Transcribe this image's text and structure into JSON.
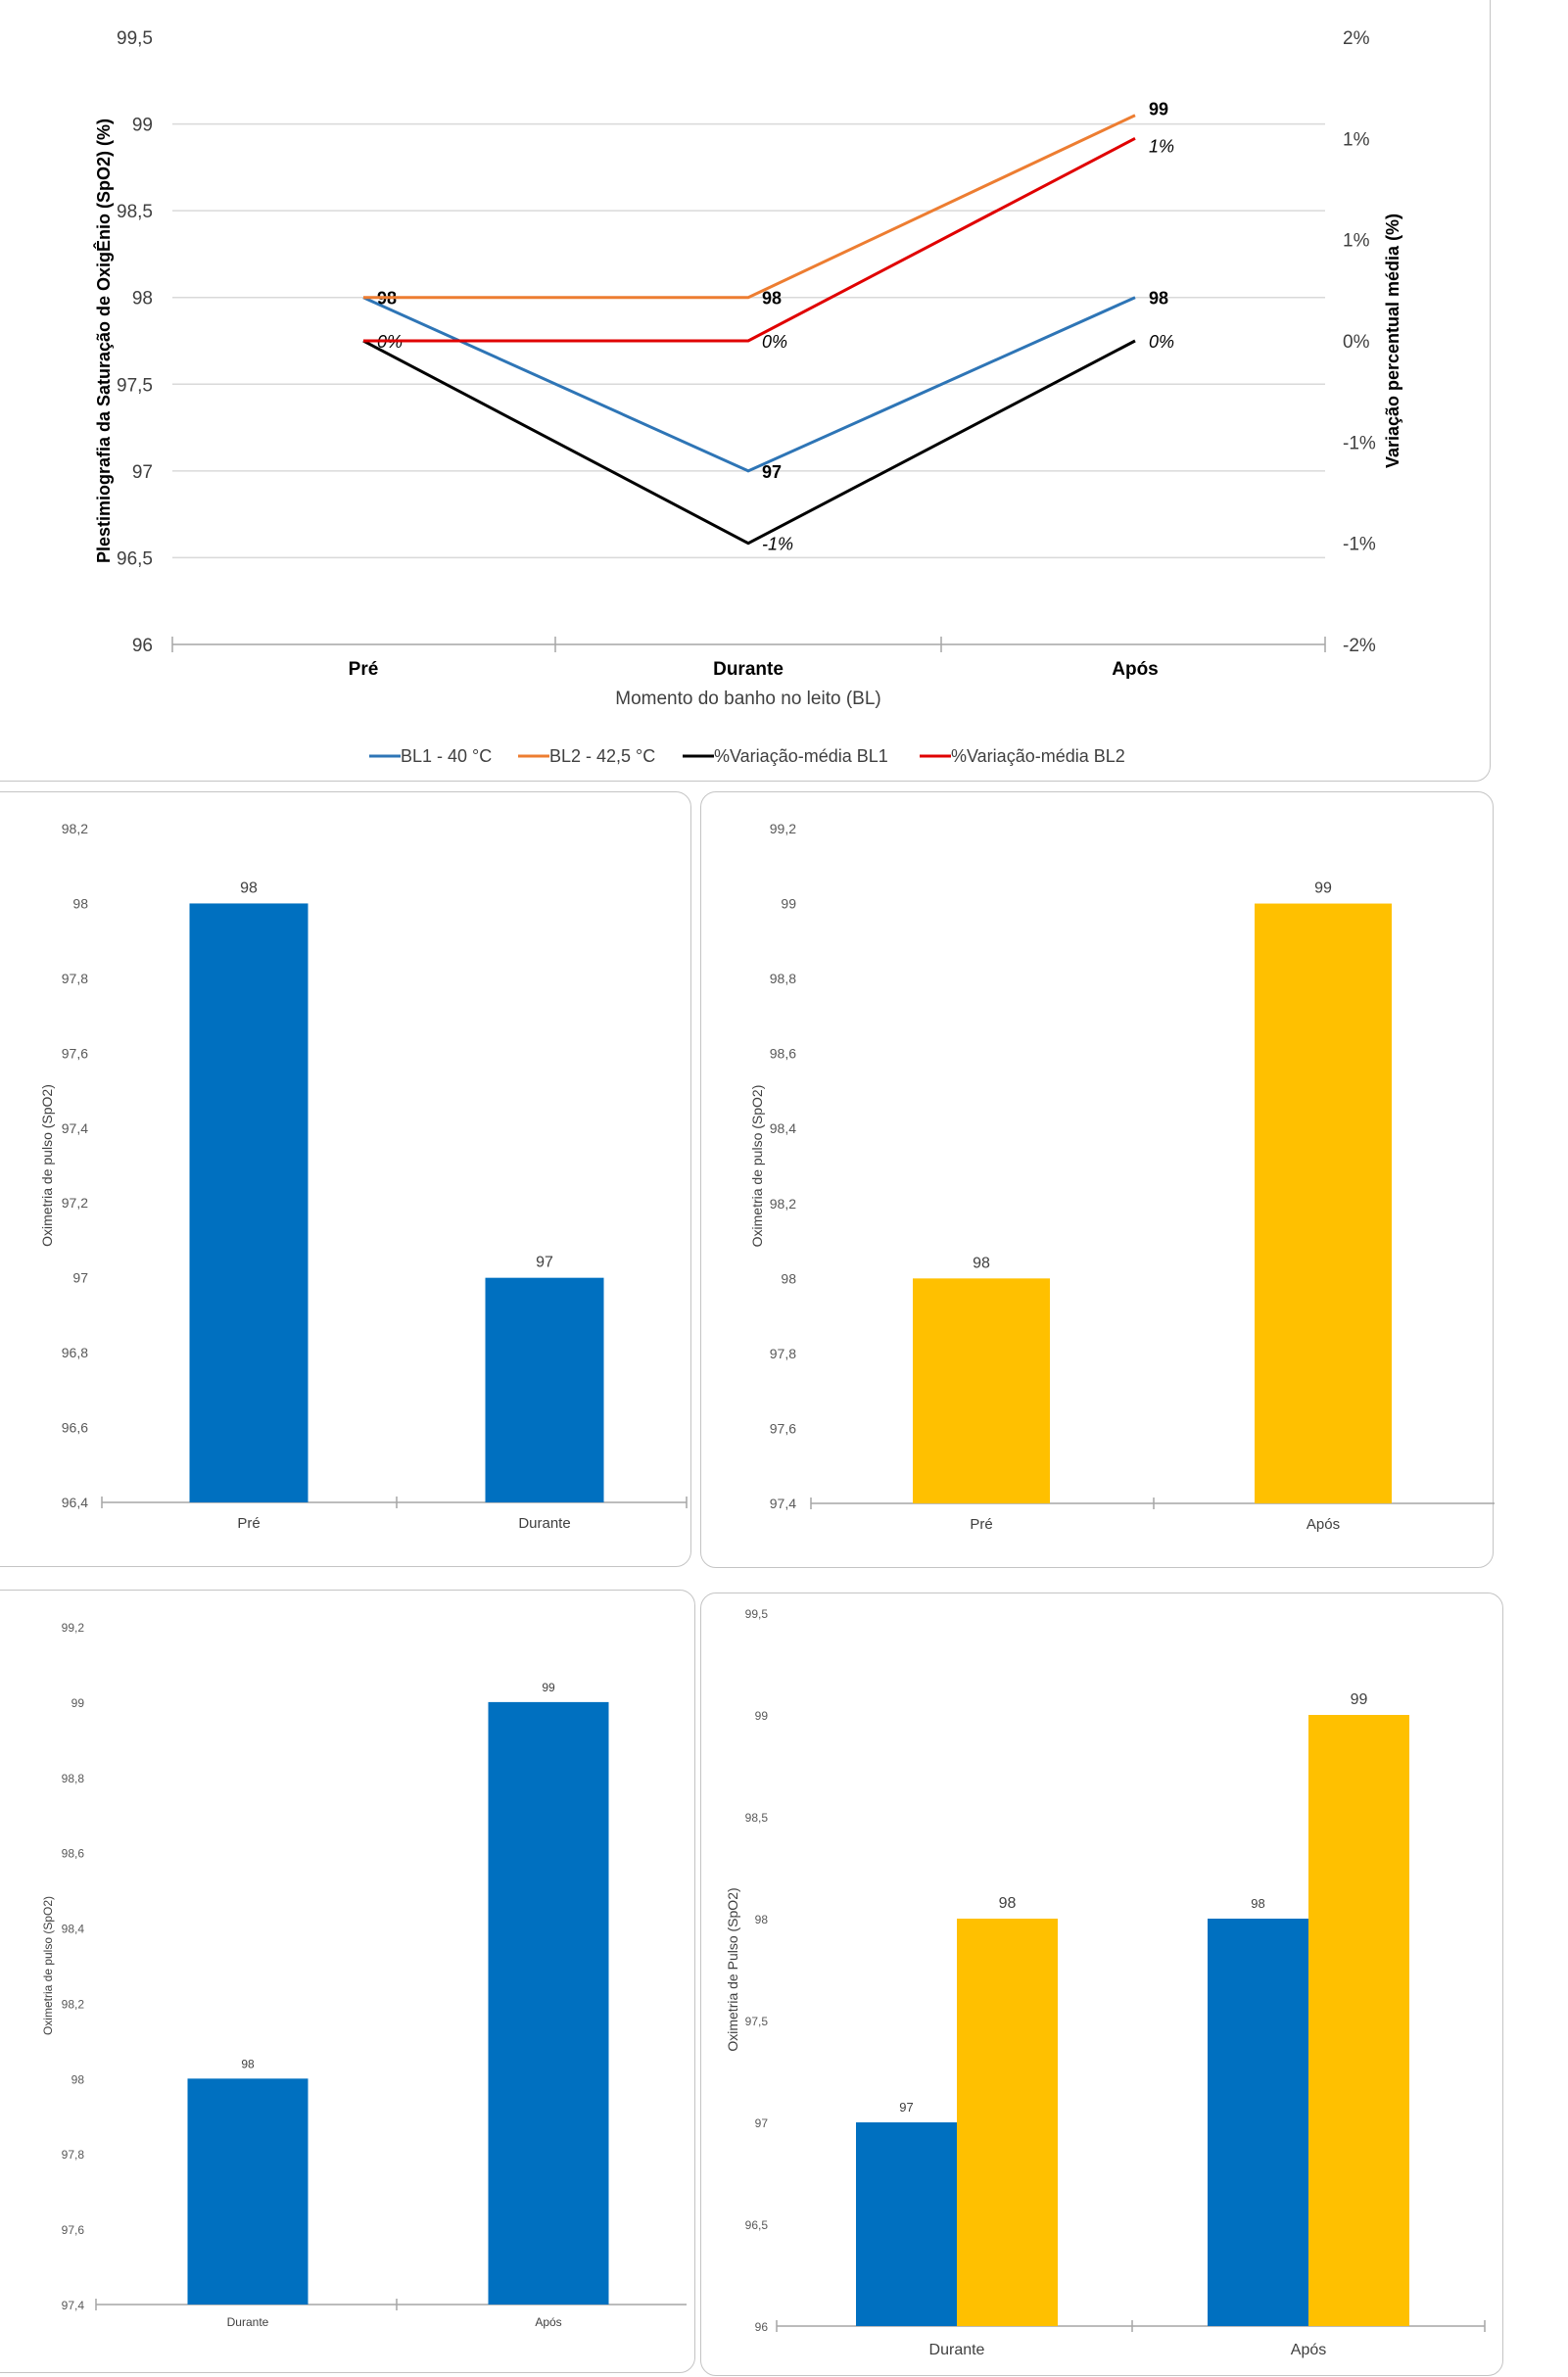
{
  "colors": {
    "blue": "#0070c0",
    "gold": "#ffc000",
    "bl1": "#2e75b6",
    "bl2": "#ed7d31",
    "var1": "#000000",
    "var2": "#e00000",
    "grid": "#d9d9d9",
    "axis": "#a6a6a6"
  },
  "chart_data": [
    {
      "type": "line",
      "x_label": "Momento do banho no leito (BL)",
      "y_label": "Plestimiografia da Saturação de OxigÊnio (SpO2) (%)",
      "y2_label": "Variação percentual média (%)",
      "categories": [
        "Pré",
        "Durante",
        "Após"
      ],
      "y_ticks": [
        "96",
        "96,5",
        "97",
        "97,5",
        "98",
        "98,5",
        "99",
        "99,5"
      ],
      "y_tick_values": [
        96,
        96.5,
        97,
        97.5,
        98,
        98.5,
        99,
        99.5
      ],
      "ylim": [
        96,
        99.5
      ],
      "y2_ticks": [
        "-2%",
        "-1%",
        "-1%",
        "0%",
        "1%",
        "1%",
        "2%"
      ],
      "y2_tick_values": [
        -1.5,
        -1.0,
        -0.5,
        0,
        0.5,
        1.0,
        1.5
      ],
      "y2lim": [
        -1.5,
        1.5
      ],
      "series": [
        {
          "name": "BL1 - 40 °C",
          "axis": "left",
          "color_key": "bl1",
          "values": [
            98,
            97,
            98
          ],
          "labels": [
            "98",
            "97",
            "98"
          ],
          "label_style": "bold"
        },
        {
          "name": "BL2 - 42,5 °C",
          "axis": "left",
          "color_key": "bl2",
          "values": [
            98,
            98,
            99.05
          ],
          "labels": [
            "",
            "98",
            "99"
          ],
          "label_style": "bold"
        },
        {
          "name": "%Variação-média BL1",
          "axis": "right",
          "color_key": "var1",
          "values": [
            0,
            -1.0,
            0
          ],
          "labels": [
            "0%",
            "-1%",
            "0%"
          ],
          "label_style": "italic"
        },
        {
          "name": "%Variação-média BL2",
          "axis": "right",
          "color_key": "var2",
          "values": [
            0,
            0,
            1.0
          ],
          "labels": [
            "",
            "0%",
            "1%"
          ],
          "label_style": "italic"
        }
      ]
    },
    {
      "type": "bar",
      "y_label": "Oximetria de pulso (SpO2)",
      "categories": [
        "Pré",
        "Durante"
      ],
      "values": [
        98,
        97
      ],
      "value_labels": [
        "98",
        "97"
      ],
      "color_key": "blue",
      "y_ticks": [
        "96,4",
        "96,6",
        "96,8",
        "97",
        "97,2",
        "97,4",
        "97,6",
        "97,8",
        "98",
        "98,2"
      ],
      "ylim": [
        96.4,
        98.2
      ]
    },
    {
      "type": "bar",
      "y_label": "Oximetria de pulso (SpO2)",
      "categories": [
        "Pré",
        "Após"
      ],
      "values": [
        98,
        99
      ],
      "value_labels": [
        "98",
        "99"
      ],
      "color_key": "gold",
      "y_ticks": [
        "97,4",
        "97,6",
        "97,8",
        "98",
        "98,2",
        "98,4",
        "98,6",
        "98,8",
        "99",
        "99,2"
      ],
      "ylim": [
        97.4,
        99.2
      ]
    },
    {
      "type": "bar",
      "y_label": "Oximetria de pulso (SpO2)",
      "categories": [
        "Durante",
        "Após"
      ],
      "values": [
        98,
        99
      ],
      "value_labels": [
        "98",
        "99"
      ],
      "color_key": "blue",
      "y_ticks": [
        "97,4",
        "97,6",
        "97,8",
        "98",
        "98,2",
        "98,4",
        "98,6",
        "98,8",
        "99",
        "99,2"
      ],
      "ylim": [
        97.4,
        99.2
      ]
    },
    {
      "type": "bar",
      "y_label": "Oximetria de Pulso (SpO2)",
      "categories": [
        "Durante",
        "Após"
      ],
      "series": [
        {
          "color_key": "blue",
          "values": [
            97,
            98
          ],
          "value_labels": [
            "97",
            "98"
          ]
        },
        {
          "color_key": "gold",
          "values": [
            98,
            99
          ],
          "value_labels": [
            "98",
            "99"
          ]
        }
      ],
      "y_ticks": [
        "96",
        "96,5",
        "97",
        "97,5",
        "98",
        "98,5",
        "99",
        "99,5"
      ],
      "ylim": [
        96,
        99.5
      ]
    }
  ]
}
